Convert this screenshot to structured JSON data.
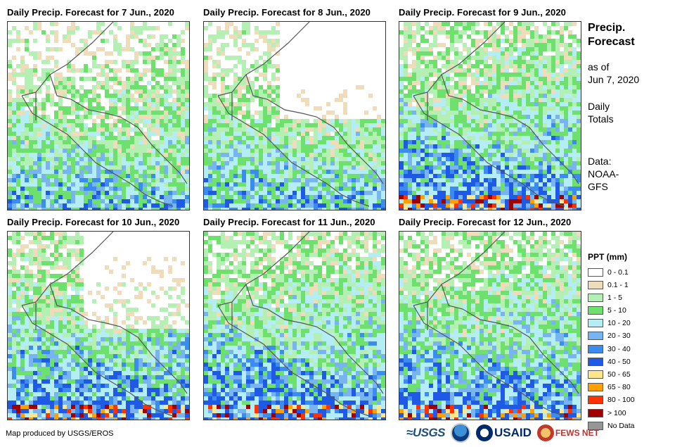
{
  "panels": [
    {
      "title": "Daily Precip. Forecast for 7 Jun., 2020",
      "seed": 7,
      "bias": [
        0.02,
        0.45,
        0.35,
        0.15,
        0.03
      ]
    },
    {
      "title": "Daily Precip. Forecast for 8 Jun., 2020",
      "seed": 8,
      "bias": [
        0.25,
        0.45,
        0.25,
        0.05,
        0.0
      ]
    },
    {
      "title": "Daily Precip. Forecast for 9 Jun., 2020",
      "seed": 9,
      "bias": [
        0.1,
        0.25,
        0.3,
        0.25,
        0.1
      ]
    },
    {
      "title": "Daily Precip. Forecast for 10 Jun., 2020",
      "seed": 10,
      "bias": [
        0.15,
        0.2,
        0.3,
        0.2,
        0.15
      ]
    },
    {
      "title": "Daily Precip. Forecast for 11 Jun., 2020",
      "seed": 11,
      "bias": [
        0.1,
        0.15,
        0.3,
        0.25,
        0.2
      ]
    },
    {
      "title": "Daily Precip. Forecast for 12 Jun., 2020",
      "seed": 12,
      "bias": [
        0.15,
        0.25,
        0.35,
        0.2,
        0.05
      ]
    }
  ],
  "info": {
    "title": "Precip. Forecast",
    "as_of": "as of",
    "date": "Jun 7, 2020",
    "daily": "Daily",
    "totals": "Totals",
    "data_label": "Data:",
    "source1": "NOAA-",
    "source2": "GFS"
  },
  "legend": {
    "title": "PPT (mm)",
    "items": [
      {
        "label": "0 - 0.1",
        "color": "#ffffff"
      },
      {
        "label": "0.1 - 1",
        "color": "#eedcbb"
      },
      {
        "label": "1 - 5",
        "color": "#b4f0b4"
      },
      {
        "label": "5 - 10",
        "color": "#6ee06e"
      },
      {
        "label": "10 - 20",
        "color": "#b4eef4"
      },
      {
        "label": "20 - 30",
        "color": "#78b4f0"
      },
      {
        "label": "30 - 40",
        "color": "#3c8cf0"
      },
      {
        "label": "40 - 50",
        "color": "#1e5ae6"
      },
      {
        "label": "50 - 65",
        "color": "#ffe68c"
      },
      {
        "label": "65 - 80",
        "color": "#ffa000"
      },
      {
        "label": "80 - 100",
        "color": "#ff3200"
      },
      {
        "label": "> 100",
        "color": "#a00000"
      },
      {
        "label": "No Data",
        "color": "#969696"
      }
    ]
  },
  "footer": {
    "credit": "Map produced by USGS/EROS",
    "logo_usgs": "≈USGS",
    "logo_usaid": "USAID",
    "logo_fews": "FEWS NET"
  }
}
